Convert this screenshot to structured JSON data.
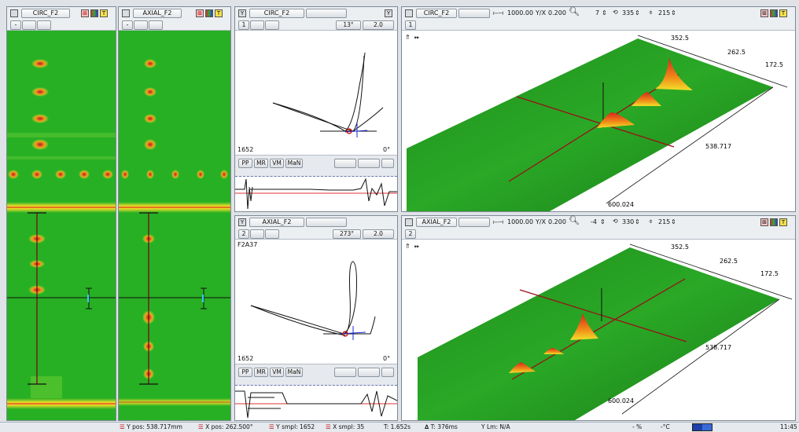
{
  "left_scans": {
    "circ": {
      "title": "CIRC_F2",
      "minus_label": "-"
    },
    "axial": {
      "title": "AXIAL_F2",
      "minus_label": "-"
    }
  },
  "lissajous": {
    "top": {
      "channel": "CIRC_F2",
      "index": "1",
      "angle": "13°",
      "scale": "2.0",
      "sample": "1652",
      "rotation": "0°",
      "buttons": [
        "PP",
        "MR",
        "VM",
        "MaN"
      ],
      "y_label": "Y"
    },
    "bottom": {
      "channel": "AXIAL_F2",
      "index": "2",
      "angle": "273°",
      "scale": "2.0",
      "name": "F2A37",
      "sample": "1652",
      "rotation": "0°",
      "buttons": [
        "PP",
        "MR",
        "VM",
        "MaN"
      ],
      "y_label": "Y"
    }
  },
  "views_3d": {
    "top": {
      "channel": "CIRC_F2",
      "index": "1",
      "span": "1000.00",
      "yx_label": "Y/X",
      "yx": "0.200",
      "tilt": "7",
      "rotate": "335",
      "elev": "215",
      "axis_x": [
        "352.5",
        "262.5",
        "172.5"
      ],
      "axis_y": [
        "538.717",
        "600.024"
      ]
    },
    "bottom": {
      "channel": "AXIAL_F2",
      "index": "2",
      "span": "1000.00",
      "yx_label": "Y/X",
      "yx": "0.200",
      "tilt": "-4",
      "rotate": "330",
      "elev": "215",
      "axis_x": [
        "352.5",
        "262.5",
        "172.5"
      ],
      "axis_y": [
        "538.717",
        "600.024"
      ]
    }
  },
  "status": {
    "y_pos": "Y pos: 538.717mm",
    "x_pos": "X pos: 262.500°",
    "y_smpl": "Y smpl: 1652",
    "x_smpl": "X smpl: 35",
    "t": "T: 1.652s",
    "dt": "T: 376ms",
    "ylm": "Y Lm: N/A",
    "pct": "- %",
    "temp": "-°C",
    "time": "11:45"
  },
  "colors": {
    "scan_green": "#27b024",
    "indication_red": "#c0141e",
    "indication_yellow": "#f2e02a",
    "cursor_line": "#7a0a12"
  },
  "icons": [
    "palette-icon",
    "color-map-icon",
    "cursor-icon",
    "zoom-icon",
    "tilt-icon",
    "rotate-icon",
    "elevation-icon",
    "up-arrows-icon",
    "fast-forward-icon"
  ]
}
